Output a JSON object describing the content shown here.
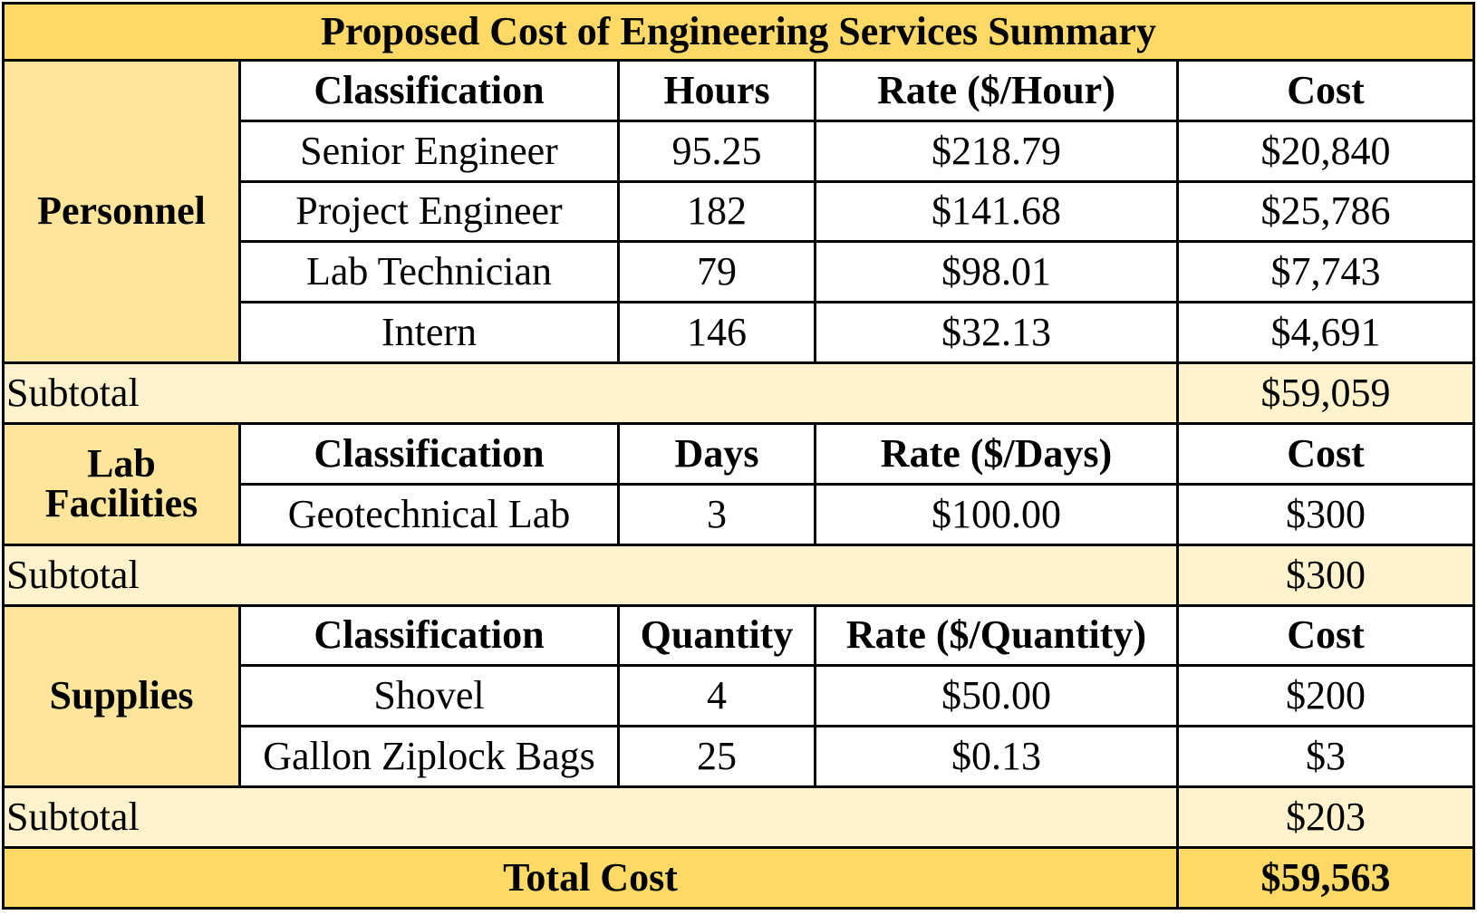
{
  "title": "Proposed Cost of Engineering Services Summary",
  "colors": {
    "title_bg": "#ffd966",
    "section_bg": "#ffe599",
    "subtotal_bg": "#fff2cc",
    "total_bg": "#ffd966"
  },
  "personnel": {
    "label": "Personnel",
    "headers": [
      "Classification",
      "Hours",
      "Rate ($/Hour)",
      "Cost"
    ],
    "rows": [
      [
        "Senior Engineer",
        "95.25",
        "$218.79",
        "$20,840"
      ],
      [
        "Project Engineer",
        "182",
        "$141.68",
        "$25,786"
      ],
      [
        "Lab Technician",
        "79",
        "$98.01",
        "$7,743"
      ],
      [
        "Intern",
        "146",
        "$32.13",
        "$4,691"
      ]
    ],
    "subtotal_label": "Subtotal",
    "subtotal": "$59,059"
  },
  "lab": {
    "label_line1": "Lab",
    "label_line2": "Facilities",
    "headers": [
      "Classification",
      "Days",
      "Rate ($/Days)",
      "Cost"
    ],
    "rows": [
      [
        "Geotechnical Lab",
        "3",
        "$100.00",
        "$300"
      ]
    ],
    "subtotal_label": "Subtotal",
    "subtotal": "$300"
  },
  "supplies": {
    "label": "Supplies",
    "headers": [
      "Classification",
      "Quantity",
      "Rate ($/Quantity)",
      "Cost"
    ],
    "rows": [
      [
        "Shovel",
        "4",
        "$50.00",
        "$200"
      ],
      [
        "Gallon Ziplock Bags",
        "25",
        "$0.13",
        "$3"
      ]
    ],
    "subtotal_label": "Subtotal",
    "subtotal": "$203"
  },
  "total": {
    "label": "Total Cost",
    "value": "$59,563"
  }
}
